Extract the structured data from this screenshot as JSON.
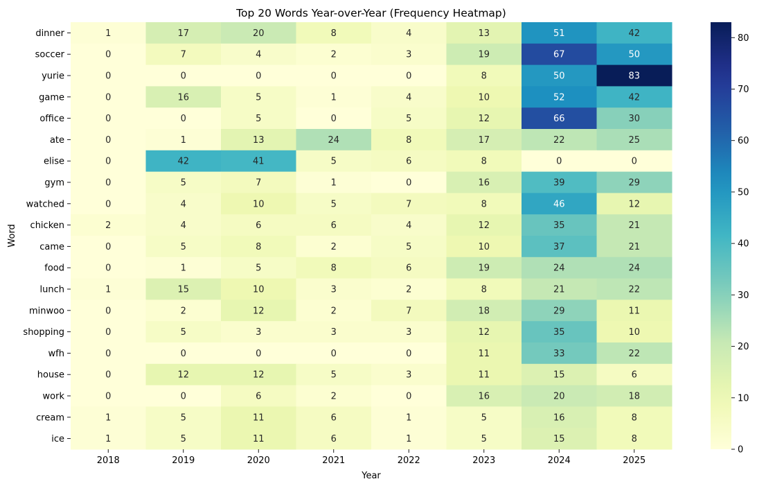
{
  "chart_data": {
    "type": "heatmap",
    "title": "Top 20 Words Year-over-Year (Frequency Heatmap)",
    "xlabel": "Year",
    "ylabel": "Word",
    "x": [
      "2018",
      "2019",
      "2020",
      "2021",
      "2022",
      "2023",
      "2024",
      "2025"
    ],
    "y": [
      "dinner",
      "soccer",
      "yurie",
      "game",
      "office",
      "ate",
      "elise",
      "gym",
      "watched",
      "chicken",
      "came",
      "food",
      "lunch",
      "minwoo",
      "shopping",
      "wfh",
      "house",
      "work",
      "cream",
      "ice"
    ],
    "values": [
      [
        1,
        17,
        20,
        8,
        4,
        13,
        51,
        42
      ],
      [
        0,
        7,
        4,
        2,
        3,
        19,
        67,
        50
      ],
      [
        0,
        0,
        0,
        0,
        0,
        8,
        50,
        83
      ],
      [
        0,
        16,
        5,
        1,
        4,
        10,
        52,
        42
      ],
      [
        0,
        0,
        5,
        0,
        5,
        12,
        66,
        30
      ],
      [
        0,
        1,
        13,
        24,
        8,
        17,
        22,
        25
      ],
      [
        0,
        42,
        41,
        5,
        6,
        8,
        0,
        0
      ],
      [
        0,
        5,
        7,
        1,
        0,
        16,
        39,
        29
      ],
      [
        0,
        4,
        10,
        5,
        7,
        8,
        46,
        12
      ],
      [
        2,
        4,
        6,
        6,
        4,
        12,
        35,
        21
      ],
      [
        0,
        5,
        8,
        2,
        5,
        10,
        37,
        21
      ],
      [
        0,
        1,
        5,
        8,
        6,
        19,
        24,
        24
      ],
      [
        1,
        15,
        10,
        3,
        2,
        8,
        21,
        22
      ],
      [
        0,
        2,
        12,
        2,
        7,
        18,
        29,
        11
      ],
      [
        0,
        5,
        3,
        3,
        3,
        12,
        35,
        10
      ],
      [
        0,
        0,
        0,
        0,
        0,
        11,
        33,
        22
      ],
      [
        0,
        12,
        12,
        5,
        3,
        11,
        15,
        6
      ],
      [
        0,
        0,
        6,
        2,
        0,
        16,
        20,
        18
      ],
      [
        1,
        5,
        11,
        6,
        1,
        5,
        16,
        8
      ],
      [
        1,
        5,
        11,
        6,
        1,
        5,
        15,
        8
      ]
    ],
    "colorbar": {
      "colormap": "YlGnBu",
      "range": [
        0,
        83
      ],
      "ticks": [
        0,
        10,
        20,
        30,
        40,
        50,
        60,
        70,
        80
      ]
    },
    "annotations": "cell values shown",
    "grid": false,
    "legend": "colorbar right"
  }
}
